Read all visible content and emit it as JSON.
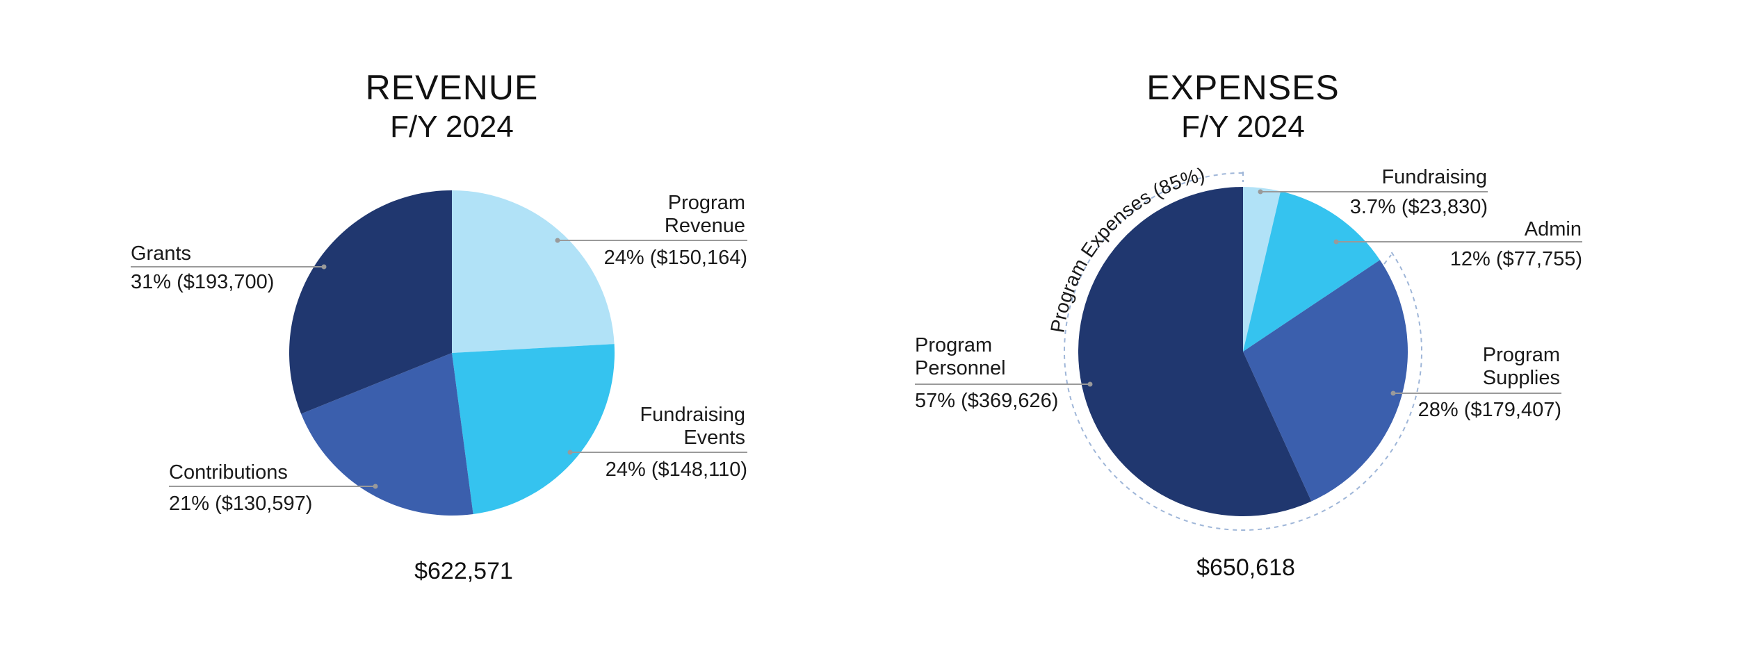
{
  "colors": {
    "navy": "#20376f",
    "royal": "#3b5fad",
    "sky": "#35c3ef",
    "pale": "#b1e2f7",
    "leader": "#9a9a9a",
    "bracket": "#9fb6d8"
  },
  "chart_data": [
    {
      "type": "pie",
      "title": "REVENUE",
      "subtitle": "F/Y 2024",
      "total_label": "$622,571",
      "slices": [
        {
          "name": "Program Revenue",
          "label_lines": [
            "Program",
            "Revenue"
          ],
          "value_label": "24% ($150,164)",
          "percent": 24,
          "value": 150164,
          "color_key": "pale"
        },
        {
          "name": "Fundraising Events",
          "label_lines": [
            "Fundraising",
            "Events"
          ],
          "value_label": "24% ($148,110)",
          "percent": 24,
          "value": 148110,
          "color_key": "sky"
        },
        {
          "name": "Contributions",
          "label_lines": [
            "Contributions"
          ],
          "value_label": "21% ($130,597)",
          "percent": 21,
          "value": 130597,
          "color_key": "royal"
        },
        {
          "name": "Grants",
          "label_lines": [
            "Grants"
          ],
          "value_label": "31% ($193,700)",
          "percent": 31,
          "value": 193700,
          "color_key": "navy"
        }
      ]
    },
    {
      "type": "pie",
      "title": "EXPENSES",
      "subtitle": "F/Y 2024",
      "total_label": "$650,618",
      "group_label": "Program Expenses (85%)",
      "slices": [
        {
          "name": "Fundraising",
          "label_lines": [
            "Fundraising"
          ],
          "value_label": "3.7% ($23,830)",
          "percent": 3.7,
          "value": 23830,
          "color_key": "pale"
        },
        {
          "name": "Admin",
          "label_lines": [
            "Admin"
          ],
          "value_label": "12% ($77,755)",
          "percent": 12,
          "value": 77755,
          "color_key": "sky"
        },
        {
          "name": "Program Supplies",
          "label_lines": [
            "Program",
            "Supplies"
          ],
          "value_label": "28% ($179,407)",
          "percent": 28,
          "value": 179407,
          "color_key": "royal"
        },
        {
          "name": "Program Personnel",
          "label_lines": [
            "Program",
            "Personnel"
          ],
          "value_label": "57% ($369,626)",
          "percent": 57,
          "value": 369626,
          "color_key": "navy"
        }
      ]
    }
  ]
}
